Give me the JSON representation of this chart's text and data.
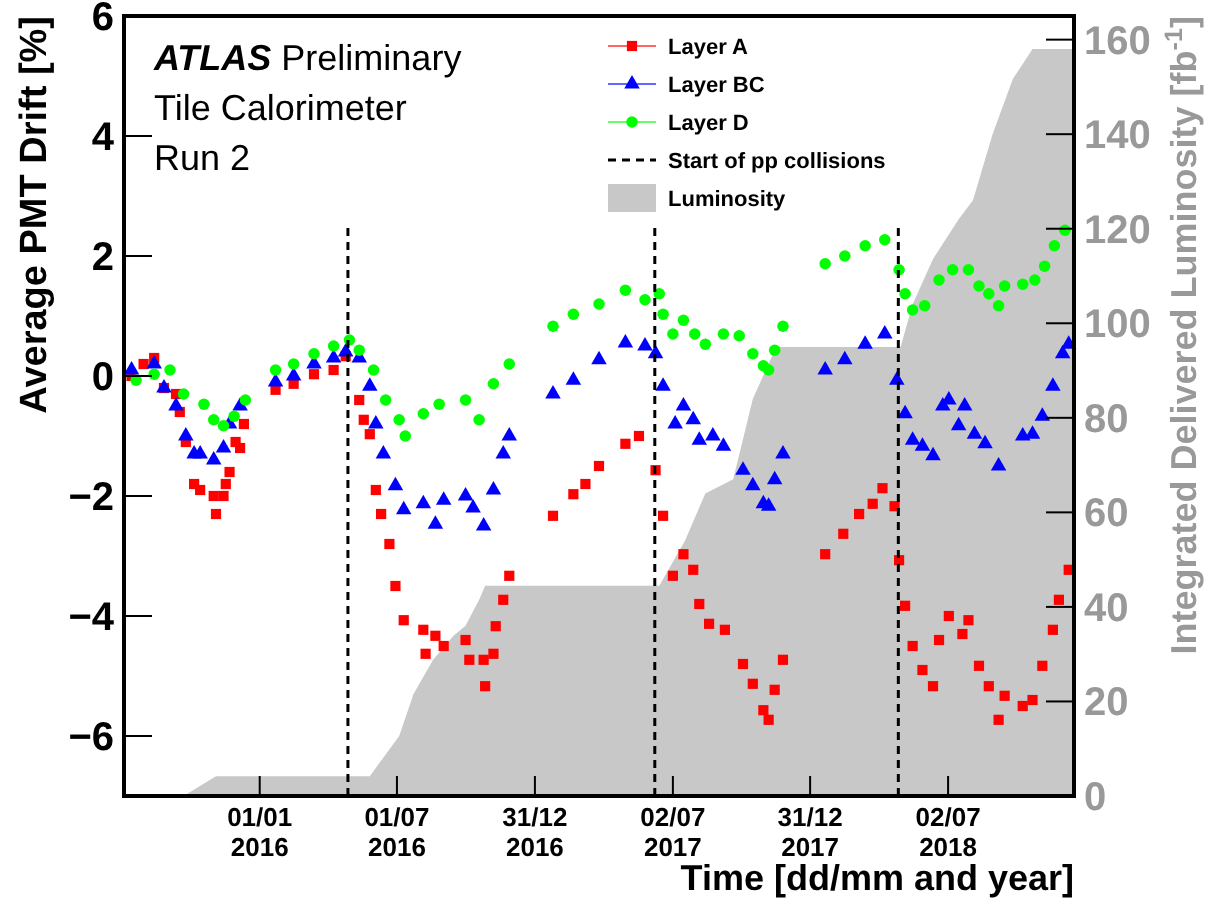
{
  "chart_data": {
    "type": "scatter",
    "xlabel": "Time [dd/mm and year]",
    "ylabel": "Average PMT Drift [%]",
    "y2label": "Integrated Delivered Luminosity [fb$^{-1}$]",
    "annotations": [
      "ATLAS Preliminary",
      "Tile Calorimeter",
      "Run 2"
    ],
    "xlim": [
      "2015-07-05",
      "2018-12-16"
    ],
    "xticks": [
      {
        "value": "2016-01-01",
        "label": "01/01\n2016"
      },
      {
        "value": "2016-07-01",
        "label": "01/07\n2016"
      },
      {
        "value": "2016-12-31",
        "label": "31/12\n2016"
      },
      {
        "value": "2017-07-02",
        "label": "02/07\n2017"
      },
      {
        "value": "2017-12-31",
        "label": "31/12\n2017"
      },
      {
        "value": "2018-07-02",
        "label": "02/07\n2018"
      }
    ],
    "ylim": [
      -7,
      6
    ],
    "yticks": [
      {
        "value": -6,
        "label": "−6"
      },
      {
        "value": -4,
        "label": "−4"
      },
      {
        "value": -2,
        "label": "−2"
      },
      0,
      2,
      4,
      6
    ],
    "y2lim": [
      0,
      165
    ],
    "y2ticks": [
      0,
      20,
      40,
      60,
      80,
      100,
      120,
      140,
      160
    ],
    "grid": false,
    "legend": "top right",
    "ref_lines": [
      {
        "axis": "x",
        "value": "2016-04-27",
        "label": "Start of pp collisions",
        "color": "#000000",
        "line_style": "dashed"
      },
      {
        "axis": "x",
        "value": "2017-06-08",
        "color": "#000000",
        "line_style": "dashed"
      },
      {
        "axis": "x",
        "value": "2018-04-27",
        "color": "#000000",
        "line_style": "dashed"
      }
    ],
    "series": [
      {
        "name": "Luminosity",
        "type": "area",
        "axis": "y2",
        "color": "#c8c8c8",
        "x": [
          "2015-09-22",
          "2015-11-04",
          "2016-05-26",
          "2016-07-04",
          "2016-07-23",
          "2016-08-18",
          "2016-09-14",
          "2016-09-30",
          "2016-10-18",
          "2016-10-26",
          "2017-06-14",
          "2017-07-18",
          "2017-08-14",
          "2017-09-20",
          "2017-10-16",
          "2017-11-12",
          "2017-11-20",
          "2018-04-30",
          "2018-05-16",
          "2018-06-12",
          "2018-07-16",
          "2018-08-04",
          "2018-08-30",
          "2018-09-26",
          "2018-10-22",
          "2018-12-16"
        ],
        "values": [
          0,
          4.2,
          4.2,
          12.7,
          21.6,
          28.8,
          33.9,
          36,
          41.5,
          44.5,
          44.5,
          54,
          64,
          67,
          84,
          93.6,
          95,
          95,
          104,
          113.6,
          122,
          126,
          140,
          151.7,
          158,
          158
        ]
      },
      {
        "name": "Layer A",
        "marker": "square",
        "color": "#ff0000",
        "x": [
          "2015-07-15",
          "2015-07-31",
          "2015-08-14",
          "2015-08-27",
          "2015-09-12",
          "2015-09-17",
          "2015-09-25",
          "2015-10-06",
          "2015-10-14",
          "2015-11-01",
          "2015-11-04",
          "2015-11-14",
          "2015-11-17",
          "2015-11-22",
          "2015-11-30",
          "2015-12-06",
          "2015-12-11",
          "2016-01-22",
          "2016-02-15",
          "2016-03-13",
          "2016-04-08",
          "2016-04-24",
          "2016-05-12",
          "2016-05-18",
          "2016-05-26",
          "2016-06-03",
          "2016-06-10",
          "2016-06-21",
          "2016-06-29",
          "2016-07-10",
          "2016-08-05",
          "2016-08-08",
          "2016-08-21",
          "2016-09-01",
          "2016-09-30",
          "2016-10-05",
          "2016-10-24",
          "2016-10-26",
          "2016-11-06",
          "2016-11-09",
          "2016-11-19",
          "2016-11-27",
          "2017-01-24",
          "2017-02-20",
          "2017-03-08",
          "2017-03-26",
          "2017-04-30",
          "2017-05-18",
          "2017-06-09",
          "2017-06-19",
          "2017-07-02",
          "2017-07-16",
          "2017-07-29",
          "2017-08-06",
          "2017-08-19",
          "2017-09-09",
          "2017-10-03",
          "2017-10-16",
          "2017-10-30",
          "2017-11-06",
          "2017-11-14",
          "2017-11-25",
          "2018-01-20",
          "2018-02-13",
          "2018-03-06",
          "2018-03-24",
          "2018-04-06",
          "2018-04-22",
          "2018-04-28",
          "2018-05-06",
          "2018-05-16",
          "2018-05-29",
          "2018-06-12",
          "2018-06-20",
          "2018-07-03",
          "2018-07-21",
          "2018-07-29",
          "2018-08-12",
          "2018-08-25",
          "2018-09-07",
          "2018-09-15",
          "2018-10-09",
          "2018-10-22",
          "2018-11-04",
          "2018-11-18",
          "2018-11-26",
          "2018-12-09"
        ],
        "values": [
          0.0,
          0.2,
          0.3,
          -0.2,
          -0.3,
          -0.6,
          -1.1,
          -1.8,
          -1.9,
          -2.0,
          -2.3,
          -2.0,
          -1.8,
          -1.6,
          -1.1,
          -1.2,
          -0.8,
          -0.23,
          -0.13,
          0.03,
          0.1,
          0.33,
          -0.4,
          -0.73,
          -0.97,
          -1.9,
          -2.3,
          -2.8,
          -3.5,
          -4.07,
          -4.23,
          -4.63,
          -4.33,
          -4.5,
          -4.4,
          -4.73,
          -4.73,
          -5.17,
          -4.63,
          -4.17,
          -3.73,
          -3.33,
          -2.33,
          -1.97,
          -1.8,
          -1.5,
          -1.13,
          -1.0,
          -1.57,
          -2.33,
          -3.33,
          -2.97,
          -3.23,
          -3.8,
          -4.13,
          -4.23,
          -4.8,
          -5.13,
          -5.57,
          -5.73,
          -5.23,
          -4.73,
          -2.97,
          -2.63,
          -2.3,
          -2.13,
          -1.87,
          -2.17,
          -3.07,
          -3.83,
          -4.5,
          -4.9,
          -5.17,
          -4.4,
          -4.0,
          -4.3,
          -4.07,
          -4.83,
          -5.17,
          -5.73,
          -5.33,
          -5.5,
          -5.4,
          -4.83,
          -4.23,
          -3.73,
          -3.23
        ]
      },
      {
        "name": "Layer BC",
        "marker": "triangle",
        "color": "#0000ff",
        "x": [
          "2015-07-15",
          "2015-08-14",
          "2015-08-27",
          "2015-09-12",
          "2015-09-25",
          "2015-10-06",
          "2015-10-14",
          "2015-11-01",
          "2015-11-14",
          "2015-11-22",
          "2015-12-06",
          "2016-01-22",
          "2016-02-15",
          "2016-03-13",
          "2016-04-08",
          "2016-04-24",
          "2016-05-12",
          "2016-05-26",
          "2016-06-03",
          "2016-06-13",
          "2016-06-29",
          "2016-07-10",
          "2016-08-05",
          "2016-08-21",
          "2016-09-01",
          "2016-09-30",
          "2016-10-10",
          "2016-10-24",
          "2016-11-06",
          "2016-11-19",
          "2016-11-27",
          "2017-01-24",
          "2017-02-20",
          "2017-03-26",
          "2017-04-30",
          "2017-05-26",
          "2017-06-09",
          "2017-06-19",
          "2017-07-05",
          "2017-07-16",
          "2017-07-29",
          "2017-08-06",
          "2017-08-24",
          "2017-09-07",
          "2017-10-03",
          "2017-10-16",
          "2017-10-30",
          "2017-11-06",
          "2017-11-14",
          "2017-11-25",
          "2018-01-20",
          "2018-02-15",
          "2018-03-14",
          "2018-04-09",
          "2018-04-25",
          "2018-05-06",
          "2018-05-16",
          "2018-05-29",
          "2018-06-12",
          "2018-06-25",
          "2018-07-03",
          "2018-07-16",
          "2018-07-24",
          "2018-08-06",
          "2018-08-20",
          "2018-09-07",
          "2018-10-09",
          "2018-10-22",
          "2018-11-04",
          "2018-11-18",
          "2018-12-01",
          "2018-12-09"
        ],
        "values": [
          0.1,
          0.2,
          -0.2,
          -0.5,
          -1.0,
          -1.3,
          -1.3,
          -1.4,
          -1.2,
          -0.8,
          -0.5,
          -0.1,
          0.0,
          0.2,
          0.3,
          0.4,
          0.3,
          -0.17,
          -0.8,
          -1.3,
          -1.83,
          -2.23,
          -2.13,
          -2.47,
          -2.07,
          -2.0,
          -2.2,
          -2.5,
          -1.9,
          -1.3,
          -1.0,
          -0.3,
          -0.07,
          0.27,
          0.55,
          0.5,
          0.37,
          -0.17,
          -0.8,
          -0.5,
          -0.73,
          -1.07,
          -1.0,
          -1.17,
          -1.57,
          -1.83,
          -2.13,
          -2.17,
          -1.73,
          -1.3,
          0.1,
          0.27,
          0.53,
          0.7,
          -0.07,
          -0.63,
          -1.07,
          -1.17,
          -1.33,
          -0.5,
          -0.4,
          -0.83,
          -0.5,
          -0.97,
          -1.13,
          -1.5,
          -1.0,
          -0.97,
          -0.67,
          -0.17,
          0.37,
          0.53
        ]
      },
      {
        "name": "Layer D",
        "marker": "circle",
        "color": "#00ff00",
        "x": [
          "2015-07-21",
          "2015-08-14",
          "2015-09-04",
          "2015-09-22",
          "2015-10-19",
          "2015-11-01",
          "2015-11-14",
          "2015-11-28",
          "2015-12-13",
          "2016-01-22",
          "2016-02-15",
          "2016-03-13",
          "2016-04-08",
          "2016-04-29",
          "2016-05-12",
          "2016-05-31",
          "2016-06-16",
          "2016-07-04",
          "2016-07-12",
          "2016-08-05",
          "2016-08-26",
          "2016-09-30",
          "2016-10-18",
          "2016-11-06",
          "2016-11-27",
          "2017-01-24",
          "2017-02-20",
          "2017-03-26",
          "2017-04-30",
          "2017-05-26",
          "2017-06-14",
          "2017-06-19",
          "2017-07-02",
          "2017-07-16",
          "2017-07-31",
          "2017-08-14",
          "2017-09-07",
          "2017-09-28",
          "2017-10-16",
          "2017-10-30",
          "2017-11-06",
          "2017-11-14",
          "2017-11-25",
          "2018-01-20",
          "2018-02-15",
          "2018-03-14",
          "2018-04-09",
          "2018-04-28",
          "2018-05-06",
          "2018-05-16",
          "2018-06-01",
          "2018-06-20",
          "2018-07-08",
          "2018-07-29",
          "2018-08-12",
          "2018-08-25",
          "2018-09-07",
          "2018-09-15",
          "2018-10-09",
          "2018-10-25",
          "2018-11-07",
          "2018-11-20",
          "2018-12-04"
        ],
        "values": [
          -0.07,
          0.03,
          0.1,
          -0.3,
          -0.47,
          -0.73,
          -0.83,
          -0.67,
          -0.4,
          0.1,
          0.2,
          0.37,
          0.5,
          0.6,
          0.43,
          0.1,
          -0.4,
          -0.73,
          -1.0,
          -0.63,
          -0.47,
          -0.4,
          -0.73,
          -0.13,
          0.2,
          0.83,
          1.03,
          1.2,
          1.43,
          1.27,
          1.37,
          1.03,
          0.7,
          0.93,
          0.7,
          0.53,
          0.7,
          0.67,
          0.37,
          0.17,
          0.1,
          0.43,
          0.83,
          1.87,
          2.0,
          2.17,
          2.27,
          1.77,
          1.37,
          1.1,
          1.17,
          1.6,
          1.77,
          1.77,
          1.5,
          1.37,
          1.17,
          1.5,
          1.53,
          1.6,
          1.83,
          2.17,
          2.43
        ]
      }
    ]
  }
}
